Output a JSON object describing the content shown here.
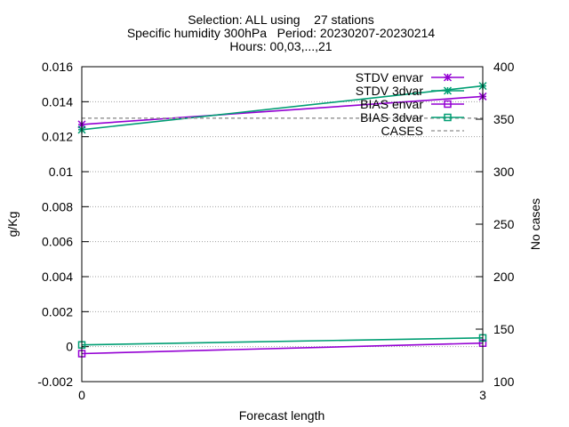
{
  "chart_data": {
    "type": "line",
    "title_lines": [
      "Selection: ALL using    27 stations",
      "Specific humidity 300hPa   Period: 20230207-20230214",
      "Hours: 00,03,...,21"
    ],
    "xlabel": "Forecast length",
    "ylabel": "g/Kg",
    "y2label": "No cases",
    "x": [
      0,
      3
    ],
    "xticks": [
      "0",
      "3"
    ],
    "xlim": [
      0,
      3
    ],
    "ylim": [
      -0.002,
      0.016
    ],
    "yticks": [
      "0.016",
      "0.014",
      "0.012",
      "0.01",
      "0.008",
      "0.006",
      "0.004",
      "0.002",
      "0",
      "-0.002"
    ],
    "y2lim": [
      100,
      400
    ],
    "y2ticks": [
      "400",
      "350",
      "300",
      "250",
      "200",
      "150",
      "100"
    ],
    "grid": true,
    "legend_position": "top-right",
    "series": [
      {
        "name": "STDV envar",
        "axis": "y",
        "values": [
          0.0127,
          0.0143
        ],
        "color": "#9400d3",
        "marker": "star"
      },
      {
        "name": "STDV 3dvar",
        "axis": "y",
        "values": [
          0.0124,
          0.0149
        ],
        "color": "#009e73",
        "marker": "star"
      },
      {
        "name": "BIAS envar",
        "axis": "y",
        "values": [
          -0.0004,
          0.0002
        ],
        "color": "#9400d3",
        "marker": "square"
      },
      {
        "name": "BIAS 3dvar",
        "axis": "y",
        "values": [
          0.0001,
          0.0005
        ],
        "color": "#009e73",
        "marker": "square"
      },
      {
        "name": "CASES",
        "axis": "y2",
        "values": [
          351,
          351
        ],
        "color": "#a0a0a0",
        "marker": "none",
        "dashed": true
      }
    ]
  }
}
